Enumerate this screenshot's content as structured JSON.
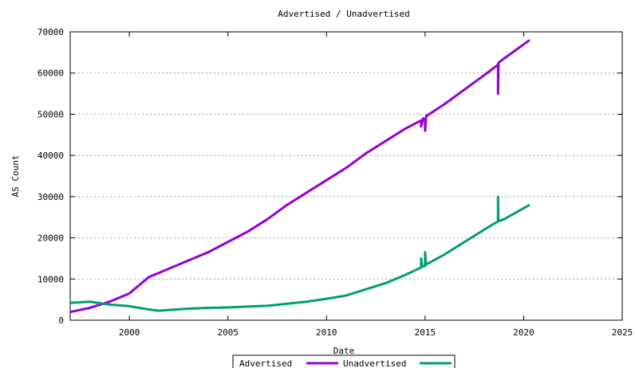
{
  "chart_data": {
    "type": "line",
    "title": "Advertised / Unadvertised",
    "xlabel": "Date",
    "ylabel": "AS Count",
    "xlim": [
      1997,
      2025
    ],
    "ylim": [
      0,
      70000
    ],
    "x_ticks": [
      2000,
      2005,
      2010,
      2015,
      2020,
      2025
    ],
    "y_ticks": [
      0,
      10000,
      20000,
      30000,
      40000,
      50000,
      60000,
      70000
    ],
    "x_tick_labels": [
      "2000",
      "2005",
      "2010",
      "2015",
      "2020",
      "2025"
    ],
    "y_tick_labels": [
      "0",
      "10000",
      "20000",
      "30000",
      "40000",
      "50000",
      "60000",
      "70000"
    ],
    "grid": true,
    "legend_position": "bottom-center",
    "series": [
      {
        "name": "Advertised",
        "color": "#9400d3",
        "points": [
          [
            1997.0,
            2000
          ],
          [
            1998.0,
            3000
          ],
          [
            1999.0,
            4500
          ],
          [
            2000.0,
            6500
          ],
          [
            2001.0,
            10500
          ],
          [
            2002.0,
            12500
          ],
          [
            2003.0,
            14500
          ],
          [
            2004.0,
            16500
          ],
          [
            2005.0,
            19000
          ],
          [
            2006.0,
            21500
          ],
          [
            2007.0,
            24500
          ],
          [
            2008.0,
            28000
          ],
          [
            2009.0,
            31000
          ],
          [
            2010.0,
            34000
          ],
          [
            2011.0,
            37000
          ],
          [
            2012.0,
            40500
          ],
          [
            2013.0,
            43500
          ],
          [
            2014.0,
            46500
          ],
          [
            2014.8,
            48500
          ],
          [
            2014.8,
            47000
          ],
          [
            2014.9,
            49000
          ],
          [
            2015.0,
            48500
          ],
          [
            2015.0,
            46000
          ],
          [
            2015.05,
            49500
          ],
          [
            2016.0,
            52500
          ],
          [
            2017.0,
            56000
          ],
          [
            2018.0,
            59500
          ],
          [
            2018.7,
            62000
          ],
          [
            2018.7,
            55000
          ],
          [
            2018.72,
            62500
          ],
          [
            2019.0,
            63500
          ],
          [
            2020.3,
            68000
          ]
        ]
      },
      {
        "name": "Unadvertised",
        "color": "#009e73",
        "points": [
          [
            1997.0,
            4200
          ],
          [
            1998.0,
            4500
          ],
          [
            1999.0,
            3800
          ],
          [
            2000.0,
            3400
          ],
          [
            2001.0,
            2600
          ],
          [
            2001.5,
            2300
          ],
          [
            2002.0,
            2500
          ],
          [
            2003.0,
            2800
          ],
          [
            2004.0,
            3000
          ],
          [
            2005.0,
            3100
          ],
          [
            2006.0,
            3300
          ],
          [
            2007.0,
            3500
          ],
          [
            2008.0,
            4000
          ],
          [
            2009.0,
            4500
          ],
          [
            2010.0,
            5200
          ],
          [
            2011.0,
            6000
          ],
          [
            2012.0,
            7500
          ],
          [
            2013.0,
            9000
          ],
          [
            2014.0,
            11000
          ],
          [
            2014.8,
            12800
          ],
          [
            2014.8,
            15000
          ],
          [
            2014.85,
            13000
          ],
          [
            2015.0,
            13200
          ],
          [
            2015.0,
            16500
          ],
          [
            2015.05,
            13500
          ],
          [
            2016.0,
            16000
          ],
          [
            2017.0,
            19000
          ],
          [
            2018.0,
            22000
          ],
          [
            2018.7,
            24000
          ],
          [
            2018.7,
            30000
          ],
          [
            2018.72,
            24000
          ],
          [
            2019.0,
            24500
          ],
          [
            2020.3,
            28000
          ]
        ]
      }
    ]
  }
}
